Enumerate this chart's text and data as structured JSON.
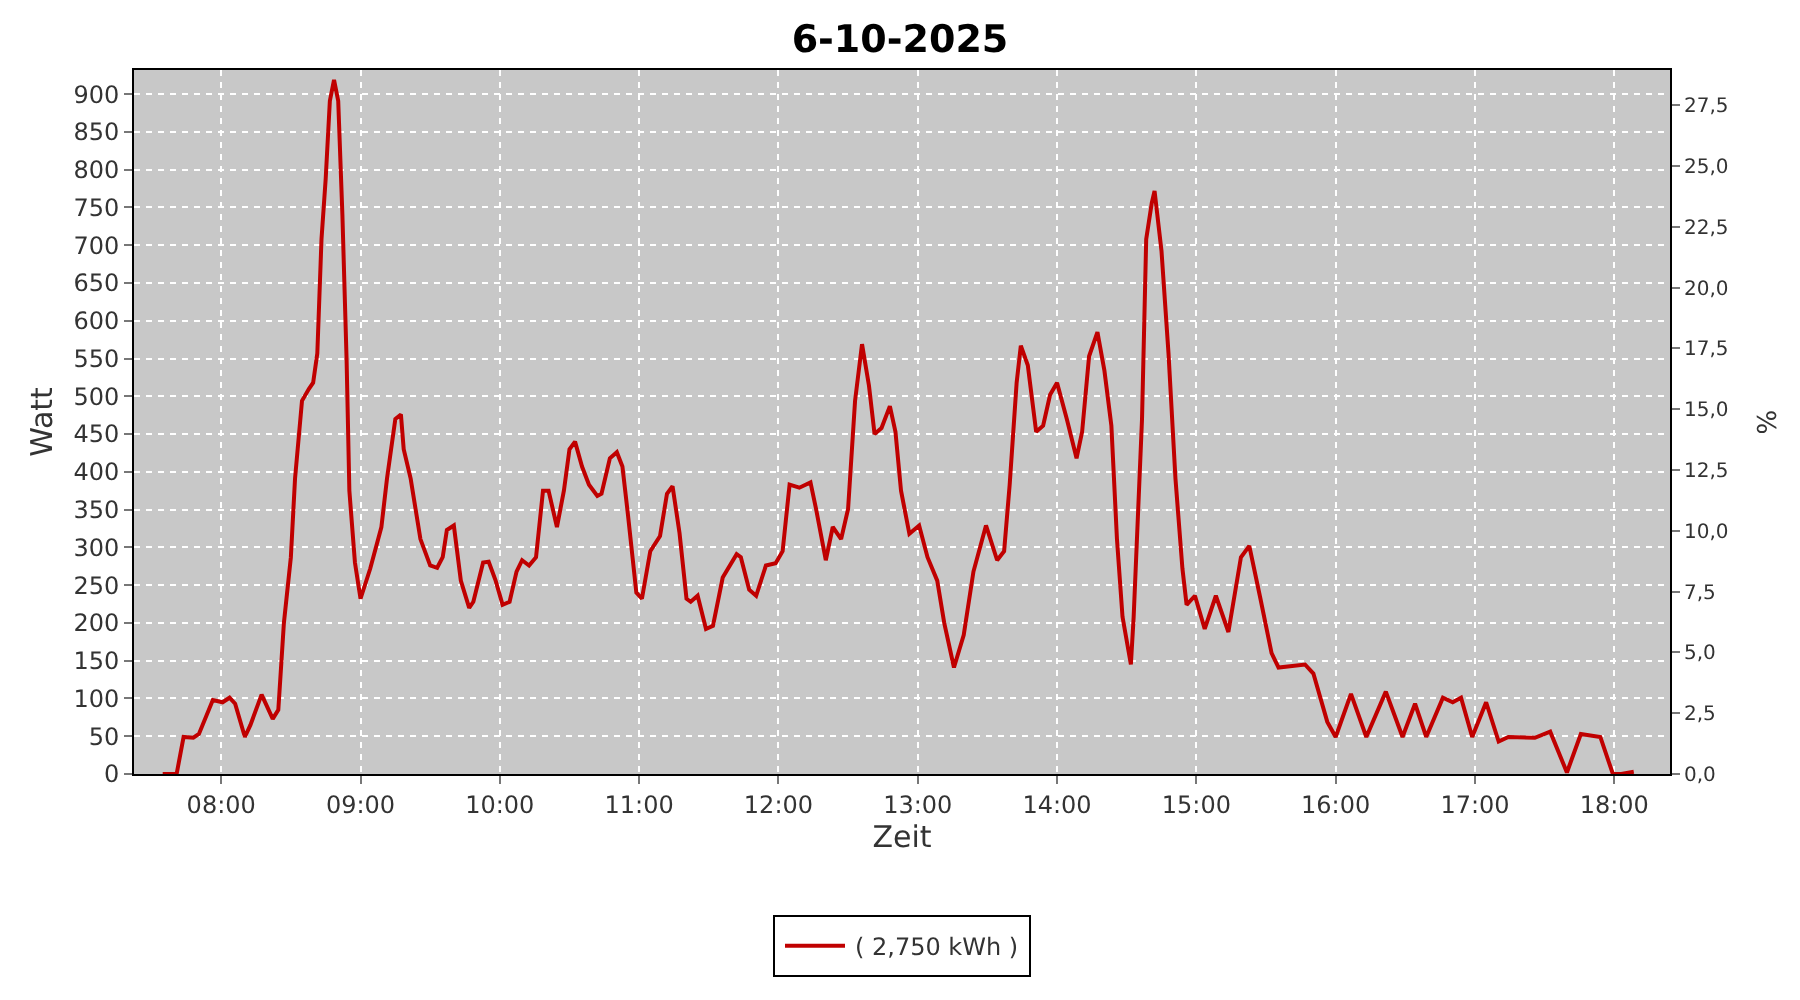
{
  "chart_data": {
    "type": "line",
    "title": "6-10-2025",
    "xlabel": "Zeit",
    "ylabel": "Watt",
    "y2label": "%",
    "xlim": [
      7.374,
      18.4
    ],
    "ylim": [
      0,
      932
    ],
    "y2lim": [
      0,
      28.95
    ],
    "xticks": [
      {
        "value": 8,
        "label": "08:00"
      },
      {
        "value": 9,
        "label": "09:00"
      },
      {
        "value": 10,
        "label": "10:00"
      },
      {
        "value": 11,
        "label": "11:00"
      },
      {
        "value": 12,
        "label": "12:00"
      },
      {
        "value": 13,
        "label": "13:00"
      },
      {
        "value": 14,
        "label": "14:00"
      },
      {
        "value": 15,
        "label": "15:00"
      },
      {
        "value": 16,
        "label": "16:00"
      },
      {
        "value": 17,
        "label": "17:00"
      },
      {
        "value": 18,
        "label": "18:00"
      }
    ],
    "yticks": [
      0,
      50,
      100,
      150,
      200,
      250,
      300,
      350,
      400,
      450,
      500,
      550,
      600,
      650,
      700,
      750,
      800,
      850,
      900
    ],
    "y2ticks": [
      {
        "value": 0,
        "label": "0,0"
      },
      {
        "value": 2.5,
        "label": "2,5"
      },
      {
        "value": 5,
        "label": "5,0"
      },
      {
        "value": 7.5,
        "label": "7,5"
      },
      {
        "value": 10,
        "label": "10,0"
      },
      {
        "value": 12.5,
        "label": "12,5"
      },
      {
        "value": 15,
        "label": "15,0"
      },
      {
        "value": 17.5,
        "label": "17,5"
      },
      {
        "value": 20,
        "label": "20,0"
      },
      {
        "value": 22.5,
        "label": "22,5"
      },
      {
        "value": 25,
        "label": "25,0"
      },
      {
        "value": 27.5,
        "label": "27,5"
      }
    ],
    "grid": true,
    "legend": "bottom",
    "marker": "none",
    "line_style": "solid",
    "series": [
      {
        "name": "( 2,750 kWh )",
        "color": "#c00000",
        "x": [
          7.58,
          7.68,
          7.73,
          7.8,
          7.84,
          7.94,
          8.01,
          8.06,
          8.1,
          8.17,
          8.21,
          8.29,
          8.37,
          8.41,
          8.45,
          8.5,
          8.53,
          8.58,
          8.63,
          8.66,
          8.69,
          8.72,
          8.75,
          8.78,
          8.81,
          8.84,
          8.87,
          8.9,
          8.92,
          8.96,
          9.0,
          9.07,
          9.15,
          9.19,
          9.25,
          9.29,
          9.31,
          9.36,
          9.43,
          9.5,
          9.55,
          9.59,
          9.62,
          9.67,
          9.72,
          9.78,
          9.81,
          9.88,
          9.92,
          9.97,
          10.02,
          10.07,
          10.12,
          10.16,
          10.21,
          10.26,
          10.31,
          10.35,
          10.4,
          10.41,
          10.46,
          10.5,
          10.54,
          10.59,
          10.64,
          10.7,
          10.73,
          10.79,
          10.84,
          10.88,
          10.92,
          10.98,
          11.02,
          11.08,
          11.15,
          11.2,
          11.24,
          11.29,
          11.34,
          11.37,
          11.42,
          11.48,
          11.53,
          11.6,
          11.7,
          11.73,
          11.79,
          11.84,
          11.91,
          11.98,
          12.03,
          12.08,
          12.15,
          12.23,
          12.27,
          12.34,
          12.39,
          12.45,
          12.5,
          12.55,
          12.6,
          12.65,
          12.69,
          12.74,
          12.8,
          12.84,
          12.88,
          12.94,
          13.01,
          13.07,
          13.14,
          13.19,
          13.26,
          13.33,
          13.4,
          13.49,
          13.57,
          13.62,
          13.66,
          13.71,
          13.74,
          13.79,
          13.85,
          13.9,
          13.95,
          14.0,
          14.07,
          14.14,
          14.18,
          14.23,
          14.29,
          14.34,
          14.39,
          14.43,
          14.47,
          14.53,
          14.55,
          14.61,
          14.64,
          14.68,
          14.7,
          14.72,
          14.75,
          14.8,
          14.85,
          14.9,
          14.93,
          14.99,
          15.06,
          15.14,
          15.23,
          15.32,
          15.38,
          15.46,
          15.54,
          15.59,
          15.78,
          15.84,
          15.94,
          16.0,
          16.11,
          16.22,
          16.36,
          16.48,
          16.57,
          16.65,
          16.77,
          16.84,
          16.9,
          16.98,
          17.08,
          17.17,
          17.24,
          17.43,
          17.54,
          17.66,
          17.76,
          17.9,
          17.99,
          18.05,
          18.14
        ],
        "values": [
          0,
          0,
          49,
          48,
          53,
          98,
          95,
          101,
          93,
          49,
          65,
          105,
          73,
          85,
          200,
          287,
          391,
          494,
          510,
          518,
          557,
          708,
          788,
          891,
          919,
          891,
          740,
          549,
          375,
          280,
          232,
          272,
          327,
          391,
          470,
          476,
          430,
          391,
          311,
          276,
          273,
          287,
          323,
          329,
          256,
          220,
          228,
          280,
          281,
          256,
          224,
          228,
          268,
          283,
          276,
          287,
          375,
          375,
          335,
          327,
          375,
          430,
          440,
          407,
          383,
          368,
          371,
          418,
          426,
          407,
          343,
          240,
          232,
          295,
          315,
          371,
          381,
          319,
          232,
          228,
          236,
          192,
          196,
          260,
          291,
          287,
          244,
          236,
          276,
          279,
          295,
          383,
          379,
          386,
          351,
          283,
          327,
          311,
          351,
          494,
          569,
          514,
          450,
          458,
          487,
          453,
          375,
          318,
          329,
          287,
          256,
          200,
          141,
          184,
          268,
          329,
          283,
          295,
          383,
          518,
          567,
          541,
          453,
          461,
          502,
          518,
          470,
          418,
          453,
          553,
          585,
          534,
          461,
          311,
          208,
          145,
          208,
          470,
          708,
          756,
          772,
          740,
          692,
          557,
          391,
          272,
          224,
          236,
          192,
          236,
          188,
          287,
          302,
          232,
          160,
          141,
          145,
          133,
          69,
          49,
          106,
          49,
          109,
          49,
          93,
          49,
          101,
          95,
          101,
          49,
          95,
          43,
          49,
          48,
          56,
          2,
          53,
          49,
          0,
          0,
          3
        ]
      }
    ]
  }
}
